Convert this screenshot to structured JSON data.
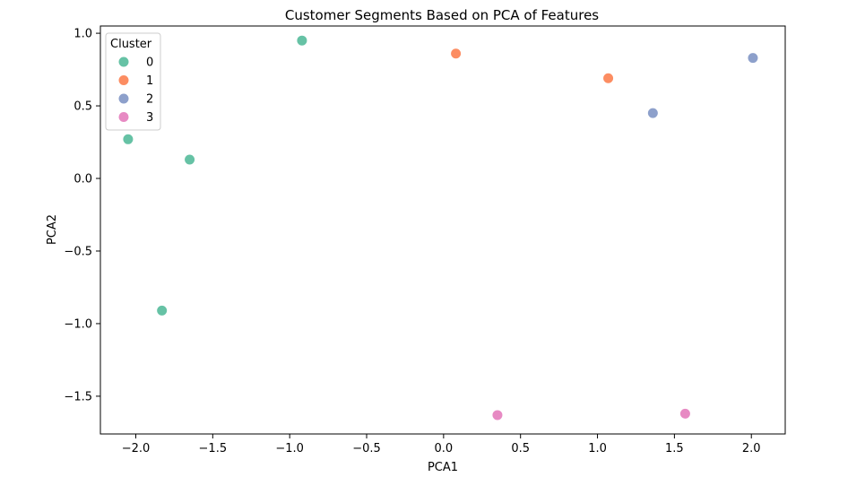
{
  "chart_data": {
    "type": "scatter",
    "title": "Customer Segments Based on PCA of Features",
    "xlabel": "PCA1",
    "ylabel": "PCA2",
    "xlim": [
      -2.23,
      2.22
    ],
    "ylim": [
      -1.76,
      1.05
    ],
    "xticks": [
      -2.0,
      -1.5,
      -1.0,
      -0.5,
      0.0,
      0.5,
      1.0,
      1.5,
      2.0
    ],
    "xtick_labels": [
      "−2.0",
      "−1.5",
      "−1.0",
      "−0.5",
      "0.0",
      "0.5",
      "1.0",
      "1.5",
      "2.0"
    ],
    "yticks": [
      1.0,
      0.5,
      0.0,
      -0.5,
      -1.0,
      -1.5
    ],
    "ytick_labels": [
      "1.0",
      "0.5",
      "0.0",
      "−0.5",
      "−1.0",
      "−1.5"
    ],
    "grid": false,
    "legend": {
      "title": "Cluster",
      "placement": "upper-left"
    },
    "series": [
      {
        "name": "0",
        "color": "#66c2a5",
        "points": [
          {
            "x": -2.05,
            "y": 0.27
          },
          {
            "x": -1.65,
            "y": 0.13
          },
          {
            "x": -0.92,
            "y": 0.95
          },
          {
            "x": -1.83,
            "y": -0.91
          }
        ]
      },
      {
        "name": "1",
        "color": "#fc8d62",
        "points": [
          {
            "x": 0.08,
            "y": 0.86
          },
          {
            "x": 1.07,
            "y": 0.69
          }
        ]
      },
      {
        "name": "2",
        "color": "#8da0cb",
        "points": [
          {
            "x": 1.36,
            "y": 0.45
          },
          {
            "x": 2.01,
            "y": 0.83
          }
        ]
      },
      {
        "name": "3",
        "color": "#e78ac3",
        "points": [
          {
            "x": 0.35,
            "y": -1.63
          },
          {
            "x": 1.57,
            "y": -1.62
          }
        ]
      }
    ]
  }
}
